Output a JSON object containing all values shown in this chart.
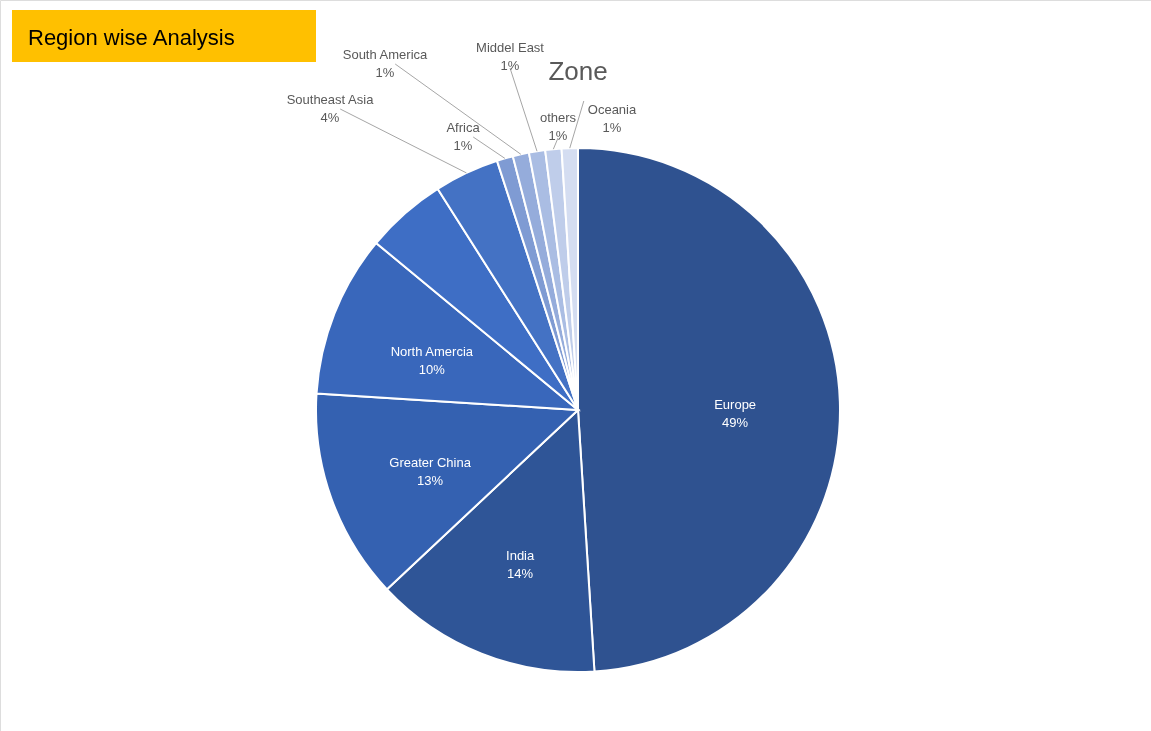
{
  "chart_data": {
    "type": "pie",
    "title": "Zone",
    "annotations": [
      "Region wise Analysis"
    ],
    "categories": [
      "Europe",
      "India",
      "Greater China",
      "North Amercia",
      null,
      "Southeast Asia",
      "Africa",
      "South America",
      "Middel East",
      "others",
      "Oceania"
    ],
    "values": [
      49,
      14,
      13,
      10,
      5,
      4,
      1,
      1,
      1,
      1,
      1
    ],
    "value_labels": [
      "49%",
      "14%",
      "13%",
      "10%",
      null,
      "4%",
      "1%",
      "1%",
      "1%",
      "1%",
      "1%"
    ],
    "colors": [
      "#2f5290",
      "#2f5597",
      "#3461b1",
      "#3967bb",
      "#3e6ec5",
      "#4472c4",
      "#7f9bd3",
      "#95acdb",
      "#aabde3",
      "#bfcdea",
      "#d4ddf1"
    ],
    "legend": false
  }
}
